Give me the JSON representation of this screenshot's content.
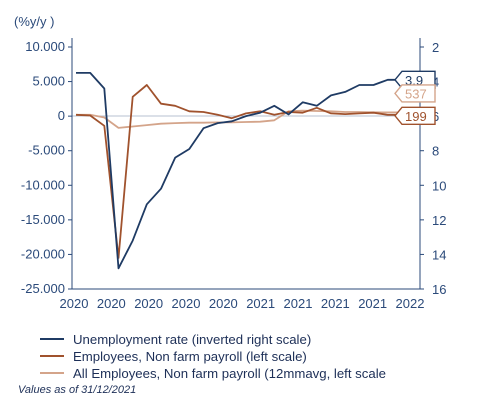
{
  "chart_data": {
    "type": "line",
    "left_unit": "(%y/y )",
    "left_axis": {
      "ticks": [
        "10.000",
        "5.000",
        "0",
        "-5.000",
        "-10.000",
        "-15.000",
        "-20.000",
        "-25.000"
      ],
      "ylim": [
        -25000,
        10000
      ]
    },
    "right_axis": {
      "ticks": [
        "2",
        "4",
        "6",
        "8",
        "10",
        "12",
        "14",
        "16"
      ],
      "ylim": [
        2,
        16
      ],
      "inverted": true
    },
    "x_ticks": [
      "2020",
      "2020",
      "2020",
      "2020",
      "2020",
      "2021",
      "2021",
      "2021",
      "2021",
      "2022"
    ],
    "grid": false,
    "legend_position": "bottom",
    "series": [
      {
        "name": "Unemployment rate (inverted right scale)",
        "axis": "right",
        "color": "#1f3b64",
        "x": [
          0,
          0.5,
          1,
          1.5,
          2,
          2.5,
          3,
          3.5,
          4,
          4.5,
          5,
          5.5,
          6,
          6.5,
          7,
          7.5,
          8,
          8.5,
          9,
          9.5,
          10,
          10.5,
          11,
          11.5
        ],
        "values": [
          3.5,
          3.5,
          4.4,
          14.8,
          13.2,
          11.1,
          10.2,
          8.4,
          7.9,
          6.7,
          6.4,
          6.3,
          6.0,
          5.8,
          5.4,
          5.9,
          5.2,
          5.4,
          4.8,
          4.6,
          4.2,
          4.2,
          3.9,
          3.9
        ]
      },
      {
        "name": "Employees, Non farm payroll (left scale)",
        "axis": "left",
        "color": "#a0522d",
        "x": [
          0,
          0.5,
          1,
          1.5,
          2,
          2.5,
          3,
          3.5,
          4,
          4.5,
          5,
          5.5,
          6,
          6.5,
          7,
          7.5,
          8,
          8.5,
          9,
          9.5,
          10,
          10.5,
          11,
          11.5
        ],
        "values": [
          200,
          100,
          -1400,
          -20500,
          2800,
          4500,
          1800,
          1500,
          700,
          600,
          200,
          -300,
          400,
          700,
          200,
          600,
          500,
          1200,
          400,
          300,
          400,
          500,
          200,
          199
        ]
      },
      {
        "name": "All Employees, Non farm payroll (12mmavg, left scale",
        "axis": "left",
        "color": "#d4a48a",
        "x": [
          0,
          0.5,
          1,
          1.5,
          2,
          2.5,
          3,
          3.5,
          4,
          4.5,
          5,
          5.5,
          6,
          6.5,
          7,
          7.5,
          8,
          8.5,
          9,
          9.5,
          10,
          10.5,
          11,
          11.5
        ],
        "values": [
          200,
          200,
          -200,
          -1700,
          -1500,
          -1300,
          -1100,
          -1000,
          -950,
          -950,
          -900,
          -900,
          -850,
          -800,
          -600,
          700,
          800,
          750,
          700,
          600,
          600,
          550,
          537,
          537
        ]
      }
    ],
    "end_labels": [
      {
        "text": "3.9",
        "color": "#1f3b64",
        "series": 0
      },
      {
        "text": "537",
        "color": "#d4a48a",
        "series": 2
      },
      {
        "text": "199",
        "color": "#a0522d",
        "series": 1
      }
    ]
  },
  "note": "Values as of 31/12/2021"
}
